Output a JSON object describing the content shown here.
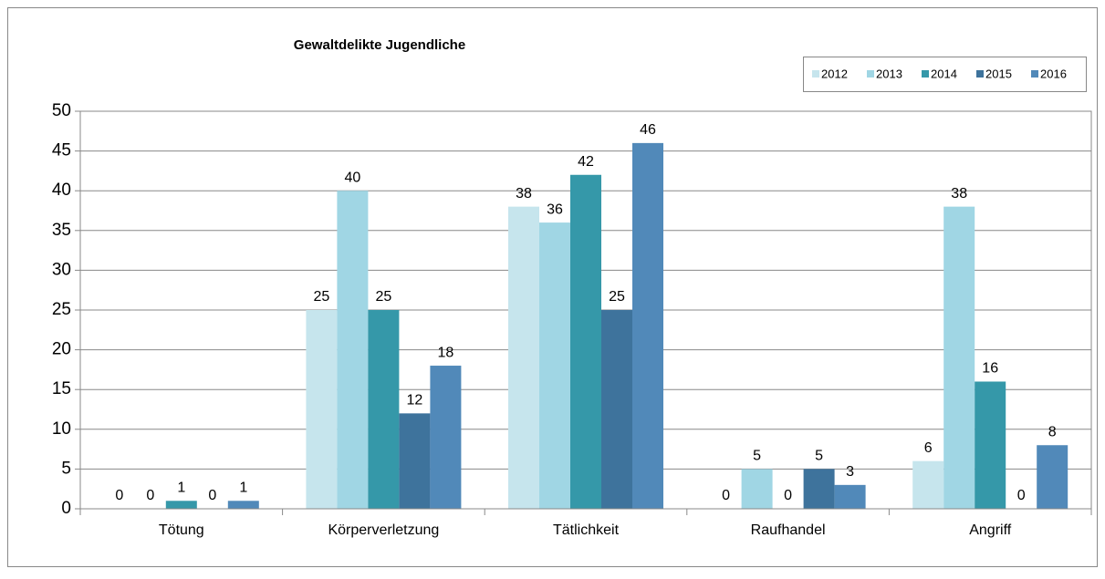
{
  "chart_data": {
    "type": "bar",
    "title": "Gewaltdelikte Jugendliche",
    "categories": [
      "Tötung",
      "Körperverletzung",
      "Tätlichkeit",
      "Raufhandel",
      "Angriff"
    ],
    "series": [
      {
        "name": "2012",
        "color": "#c6e5ed",
        "values": [
          0,
          25,
          38,
          0,
          6
        ]
      },
      {
        "name": "2013",
        "color": "#a0d6e4",
        "values": [
          0,
          40,
          36,
          5,
          38
        ]
      },
      {
        "name": "2014",
        "color": "#3598a9",
        "values": [
          1,
          25,
          42,
          0,
          16
        ]
      },
      {
        "name": "2015",
        "color": "#3e739c",
        "values": [
          0,
          12,
          25,
          5,
          0
        ]
      },
      {
        "name": "2016",
        "color": "#5189b9",
        "values": [
          1,
          18,
          46,
          3,
          8
        ]
      }
    ],
    "ylim": [
      0,
      50
    ],
    "yticks": [
      0,
      5,
      10,
      15,
      20,
      25,
      30,
      35,
      40,
      45,
      50
    ],
    "grid": true,
    "legend": "top-right"
  }
}
